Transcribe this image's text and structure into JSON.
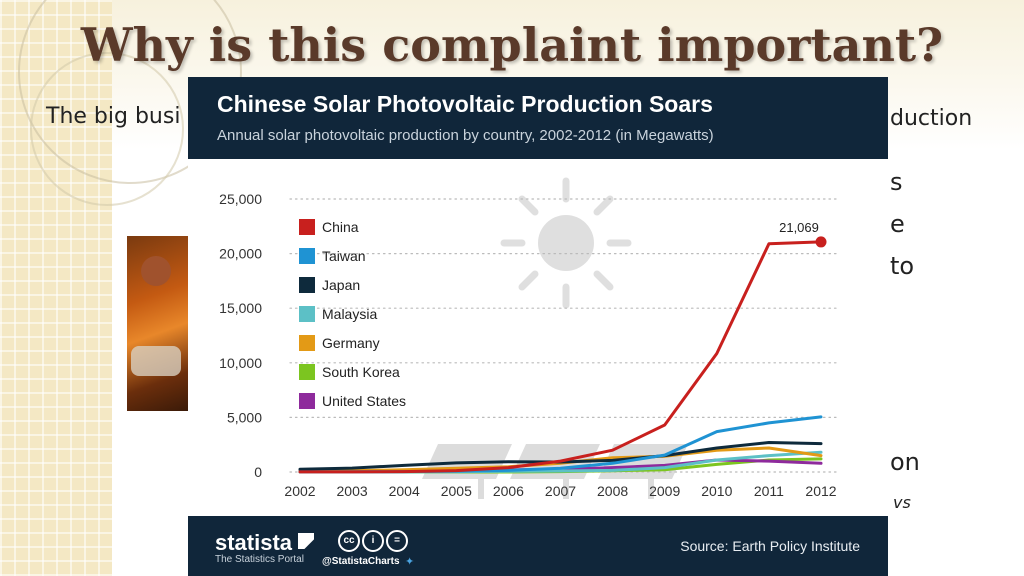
{
  "slide": {
    "title": "Why is this complaint important?",
    "bg_line1_left": "The big busi",
    "bg_line1_right": "duction",
    "fragments": [
      "s",
      "e",
      "to",
      "on",
      "vs"
    ]
  },
  "chart_data": {
    "type": "line",
    "title": "Chinese Solar Photovoltaic Production Soars",
    "subtitle": "Annual solar photovoltaic production by country, 2002-2012 (in Megawatts)",
    "x": [
      "2002",
      "2003",
      "2004",
      "2005",
      "2006",
      "2007",
      "2008",
      "2009",
      "2010",
      "2011",
      "2012"
    ],
    "y_ticks": [
      "0",
      "5,000",
      "10,000",
      "15,000",
      "20,000",
      "25,000"
    ],
    "ylim": [
      0,
      25000
    ],
    "grid": true,
    "legend_placement": "top-left",
    "series": [
      {
        "name": "China",
        "color": "#c8201e",
        "values": [
          10,
          13,
          40,
          130,
          400,
          1000,
          2000,
          4300,
          10850,
          20900,
          21069
        ]
      },
      {
        "name": "Taiwan",
        "color": "#1f93d3",
        "values": [
          10,
          17,
          40,
          80,
          150,
          350,
          800,
          1550,
          3700,
          4500,
          5050
        ]
      },
      {
        "name": "Japan",
        "color": "#0e2a3c",
        "values": [
          250,
          360,
          600,
          830,
          930,
          920,
          1060,
          1500,
          2200,
          2700,
          2600
        ]
      },
      {
        "name": "Malaysia",
        "color": "#5cc0c6",
        "values": [
          0,
          0,
          10,
          30,
          60,
          90,
          150,
          400,
          1100,
          1500,
          1800
        ]
      },
      {
        "name": "Germany",
        "color": "#e39a16",
        "values": [
          60,
          120,
          200,
          340,
          480,
          800,
          1300,
          1450,
          2000,
          2200,
          1500
        ]
      },
      {
        "name": "South Korea",
        "color": "#7cc520",
        "values": [
          0,
          0,
          0,
          0,
          0,
          40,
          120,
          200,
          700,
          1100,
          1200
        ]
      },
      {
        "name": "United States",
        "color": "#8e2a9c",
        "values": [
          110,
          110,
          140,
          150,
          190,
          260,
          400,
          600,
          1100,
          1000,
          800
        ]
      }
    ],
    "annotation": "21,069"
  },
  "footer": {
    "brand": "statista",
    "brand_sub": "The Statistics Portal",
    "handle": "@StatistaCharts",
    "source": "Source: Earth Policy Institute",
    "cc_icons": [
      "cc",
      "i",
      "="
    ]
  }
}
